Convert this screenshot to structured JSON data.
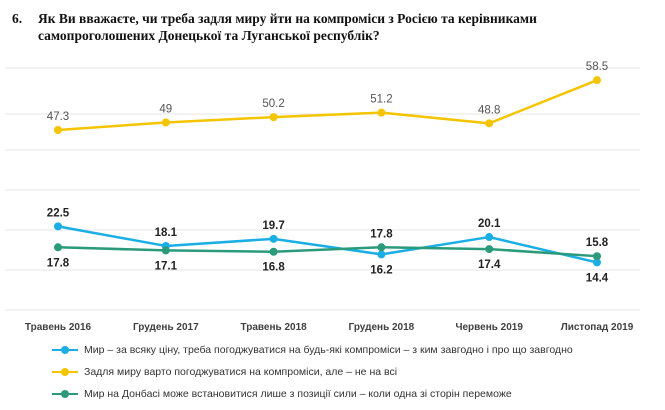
{
  "question": {
    "number": "6.",
    "line1": "Як Ви вважаєте, чи треба задля миру йти на компроміси з Росією та керівниками",
    "line2": "самопроголошених Донецької та Луганської республік?"
  },
  "chart_data": {
    "type": "line",
    "categories": [
      "Травень 2016",
      "Грудень 2017",
      "Травень 2018",
      "Грудень 2018",
      "Червень 2019",
      "Листопад 2019"
    ],
    "series": [
      {
        "name": "Мир – за всяку ціну, треба погоджуватися на будь-які компроміси – з ким  завгодно і про що завгодно",
        "color": "#1aaee5",
        "values": [
          22.5,
          18.1,
          19.7,
          16.2,
          20.1,
          14.4
        ],
        "label_pos": [
          "above",
          "above",
          "above",
          "below",
          "above",
          "below"
        ]
      },
      {
        "name": "Задля миру варто погоджуватися на  компроміси, але – не на всі",
        "color": "#f5c400",
        "values": [
          47.3,
          49,
          50.2,
          51.2,
          48.8,
          58.5
        ],
        "label_pos": [
          "above",
          "above",
          "above",
          "above",
          "above",
          "above"
        ]
      },
      {
        "name": "Мир на Донбасі може встановитися лише з позиції сили – коли одна зі сторін переможе",
        "color": "#2b9a7a",
        "values": [
          17.8,
          17.1,
          16.8,
          17.8,
          17.4,
          15.8
        ],
        "label_pos": [
          "below",
          "below",
          "below",
          "above",
          "below",
          "above"
        ]
      }
    ],
    "grid": true,
    "legend_position": "bottom"
  }
}
